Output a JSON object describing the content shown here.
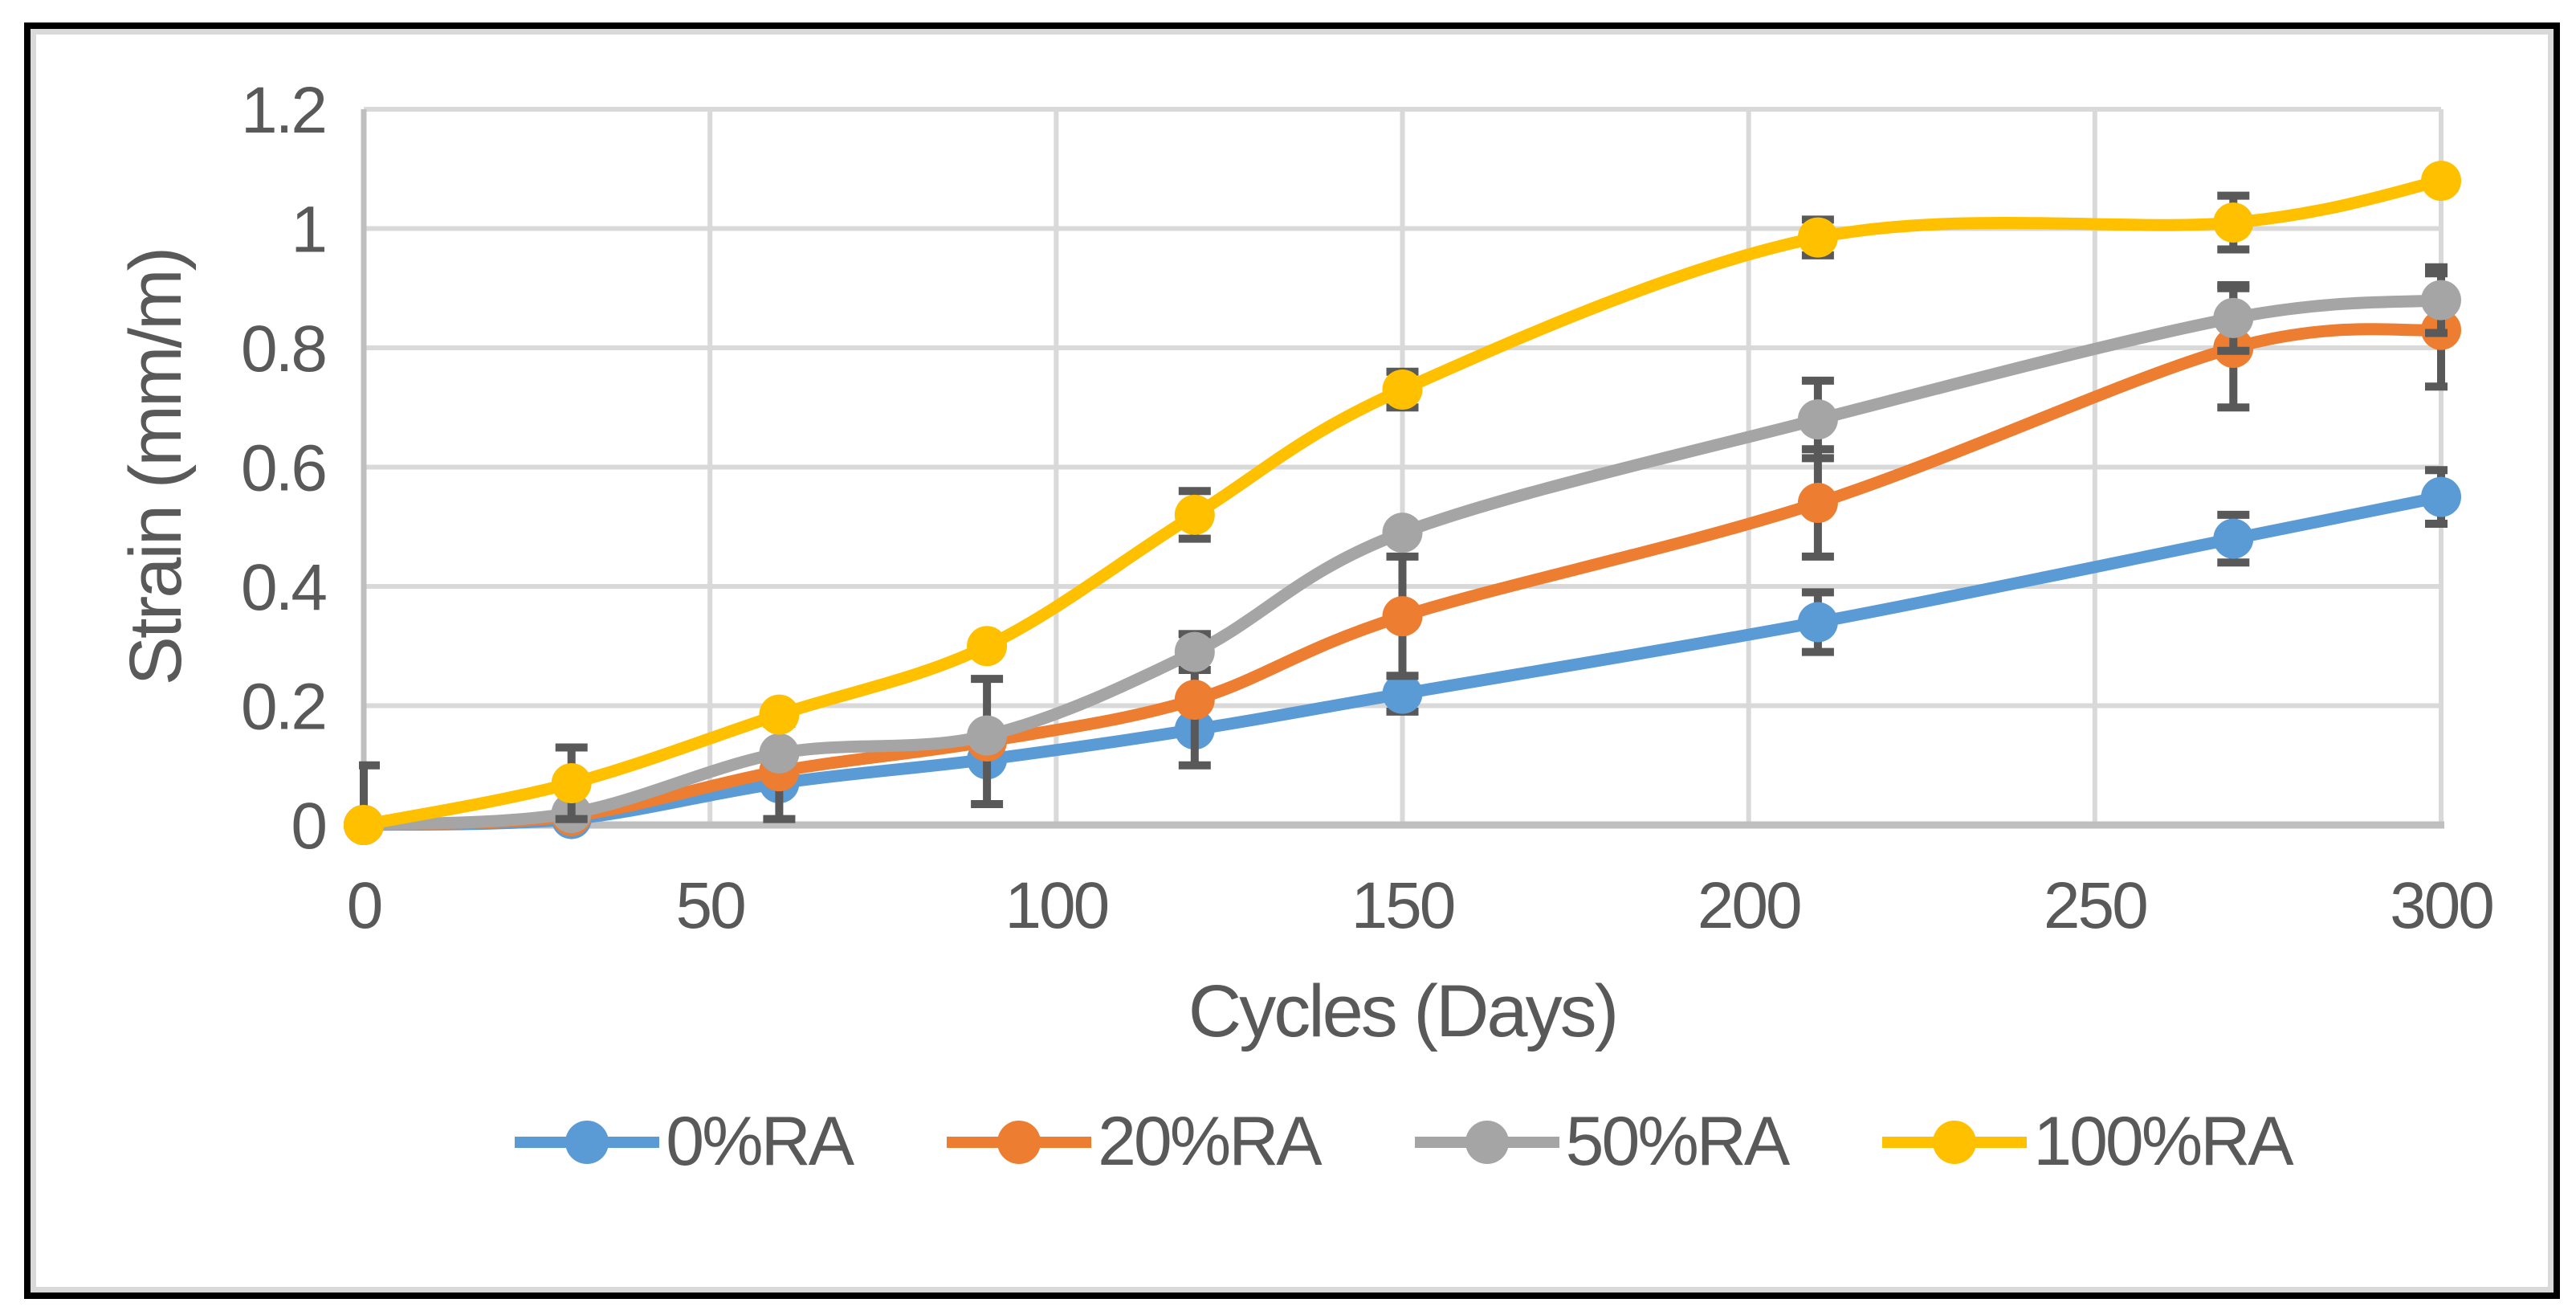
{
  "chart_data": {
    "type": "line",
    "title": "",
    "xlabel": "Cycles (Days)",
    "ylabel": "Strain (mm/m)",
    "x": [
      0,
      30,
      60,
      90,
      120,
      150,
      210,
      270,
      300
    ],
    "xlim": [
      0,
      300
    ],
    "ylim": [
      0,
      1.2
    ],
    "x_tick_labels": [
      "0",
      "50",
      "100",
      "150",
      "200",
      "250",
      "300"
    ],
    "x_tick_values": [
      0,
      50,
      100,
      150,
      200,
      250,
      300
    ],
    "y_tick_labels": [
      "0",
      "0.2",
      "0.4",
      "0.6",
      "0.8",
      "1",
      "1.2"
    ],
    "y_tick_values": [
      0,
      0.2,
      0.4,
      0.6,
      0.8,
      1,
      1.2
    ],
    "grid": true,
    "smooth_lines": true,
    "legend_position": "bottom",
    "series": [
      {
        "name": "0%RA",
        "color": "#5B9BD5",
        "values": [
          0,
          0.01,
          0.07,
          0.11,
          0.16,
          0.22,
          0.34,
          0.48,
          0.55
        ],
        "errors": [
          null,
          null,
          null,
          null,
          null,
          0.03,
          0.05,
          0.04,
          0.045
        ]
      },
      {
        "name": "20%RA",
        "color": "#ED7D31",
        "values": [
          0,
          0.015,
          0.09,
          0.14,
          0.21,
          0.35,
          0.54,
          0.8,
          0.83
        ],
        "errors": [
          null,
          null,
          0.08,
          0.105,
          0.11,
          0.1,
          0.09,
          0.1,
          0.095
        ]
      },
      {
        "name": "50%RA",
        "color": "#A5A5A5",
        "values": [
          0,
          0.02,
          0.12,
          0.15,
          0.29,
          0.49,
          0.68,
          0.85,
          0.88
        ],
        "errors": [
          null,
          null,
          null,
          null,
          0.03,
          null,
          0.065,
          0.055,
          0.055
        ]
      },
      {
        "name": "100%RA",
        "color": "#FFC000",
        "values": [
          0,
          0.07,
          0.185,
          0.3,
          0.52,
          0.73,
          0.985,
          1.01,
          1.08
        ],
        "errors": [
          0.1,
          0.06,
          null,
          null,
          0.04,
          0.03,
          0.03,
          0.045,
          null
        ]
      }
    ],
    "colors": {
      "gridline": "#D9D9D9",
      "axis_line": "#BFBFBF",
      "error_bar": "#595959",
      "text": "#595959",
      "outer_border": "#000000",
      "inner_border": "#D9D9D9",
      "background": "#FFFFFF"
    }
  }
}
